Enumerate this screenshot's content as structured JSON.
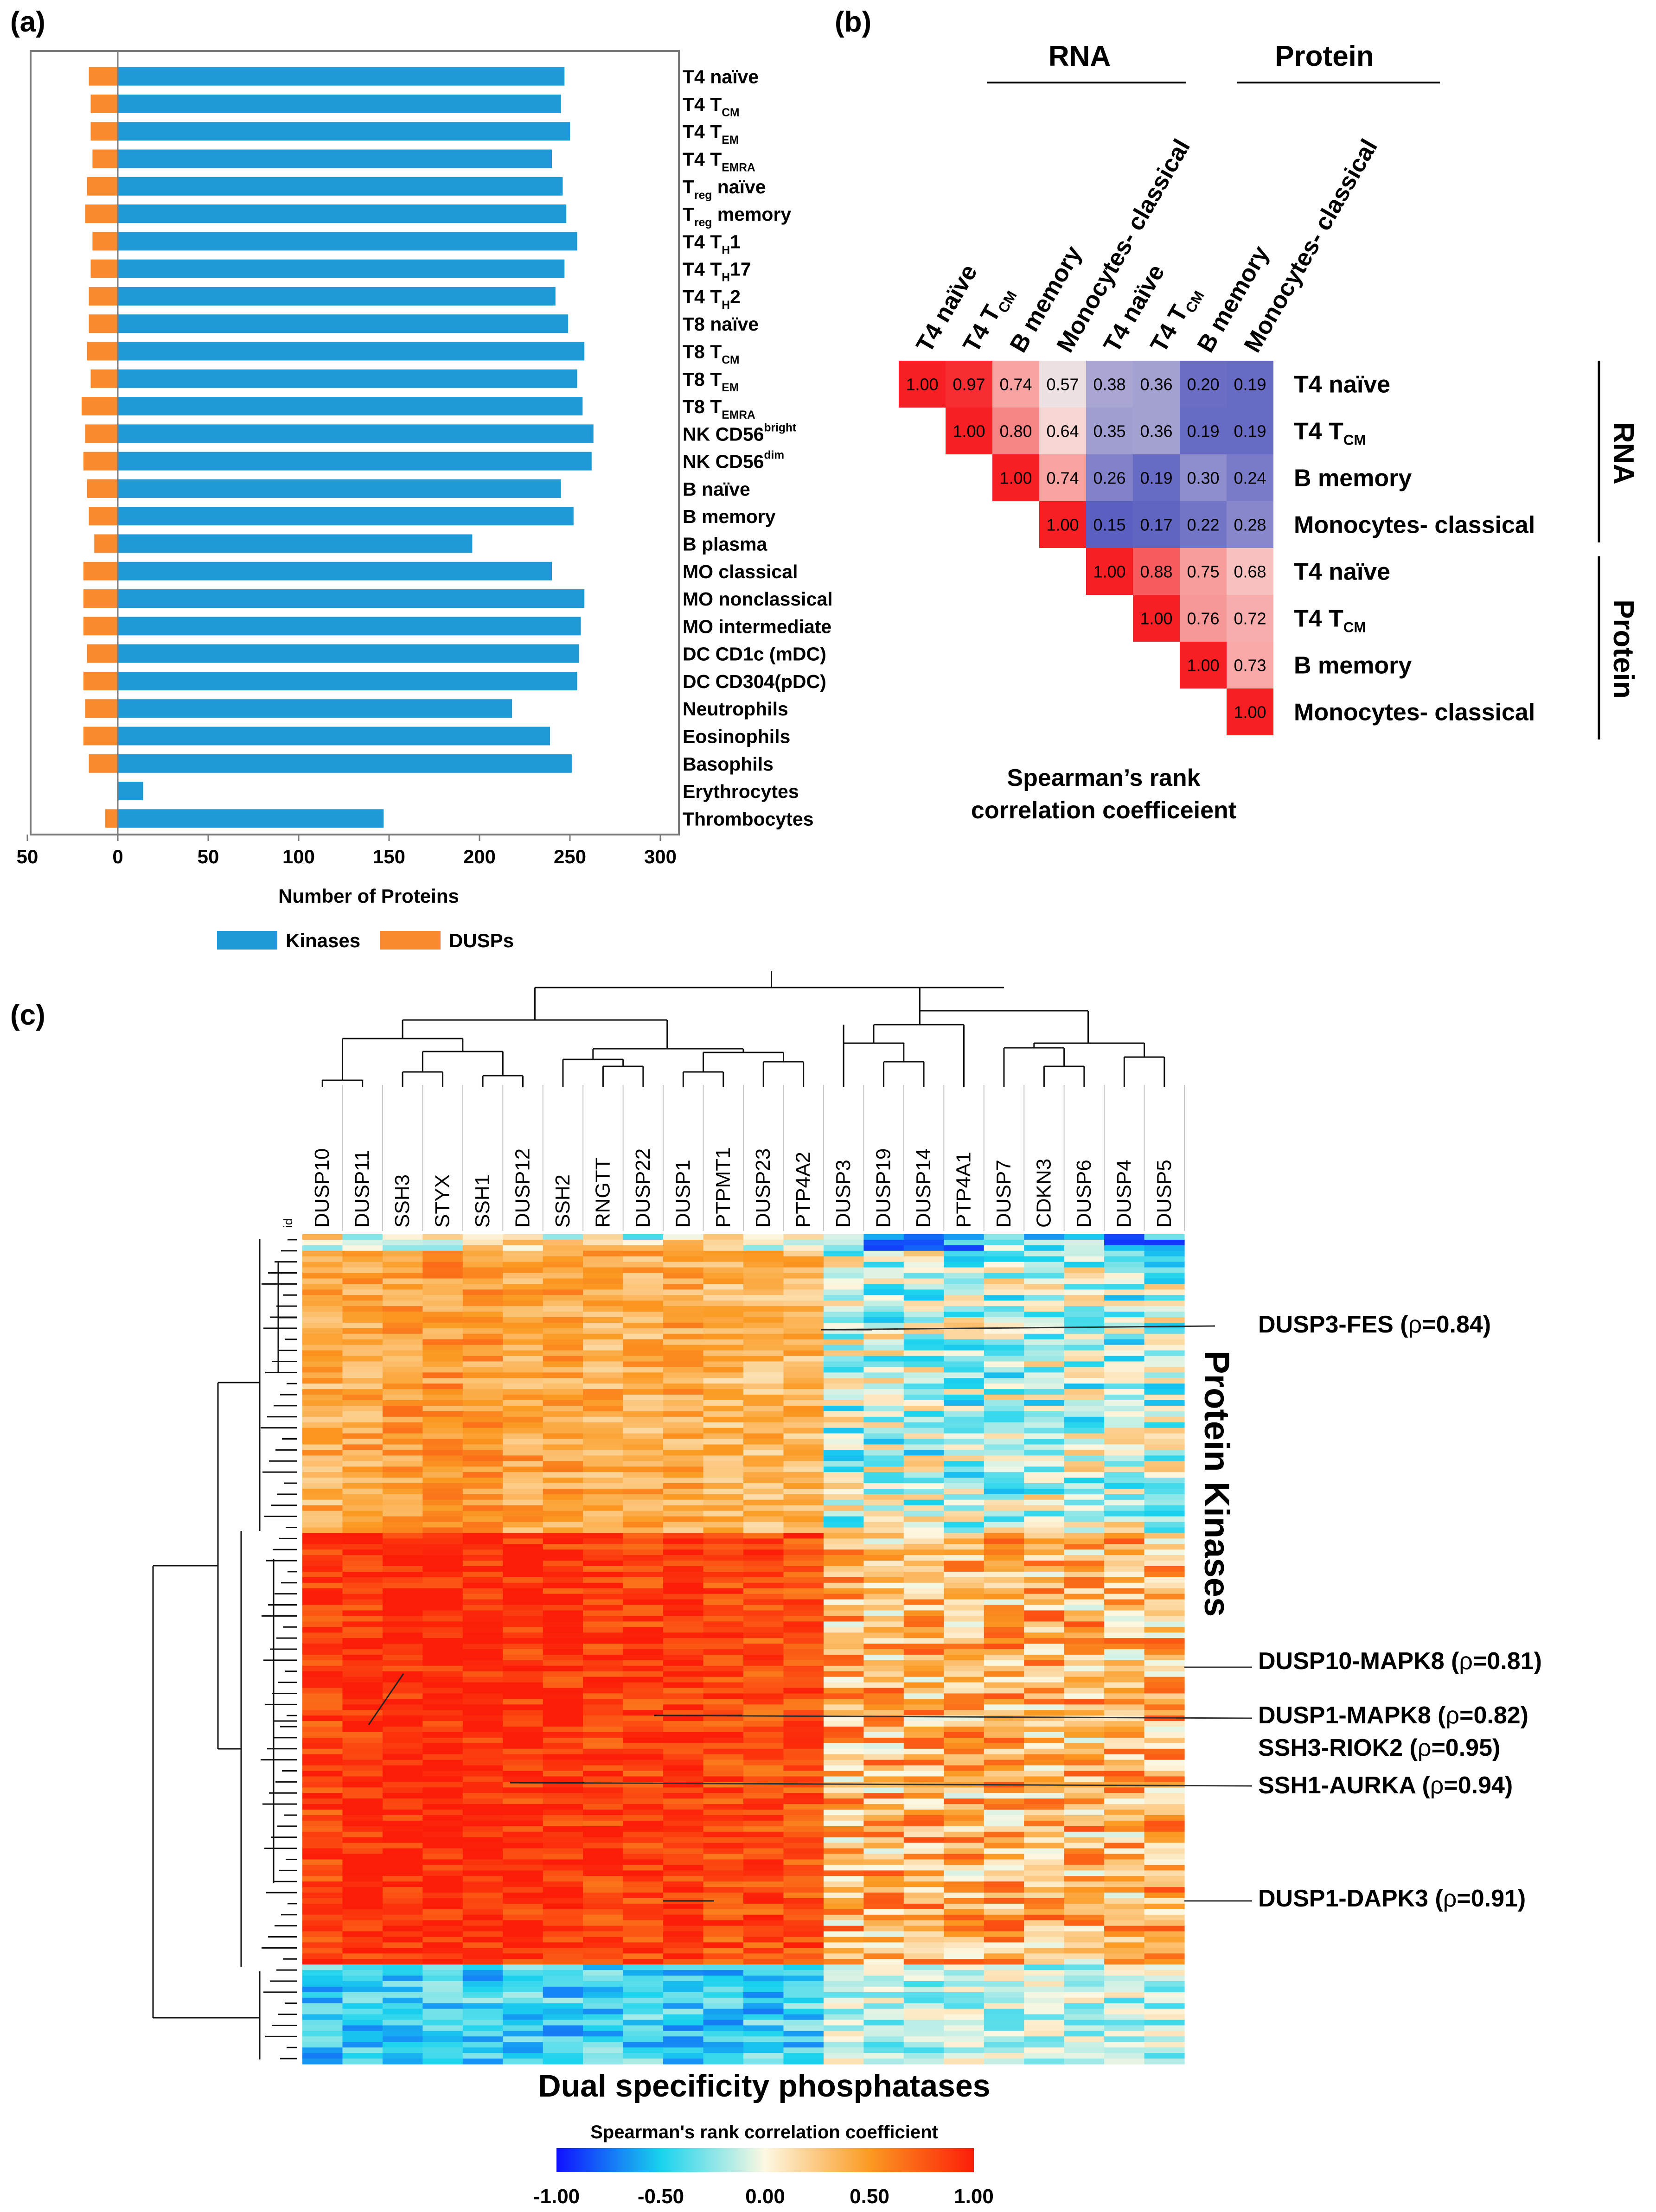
{
  "panels": {
    "a": "(a)",
    "b": "(b)",
    "c": "(c)"
  },
  "chart_data": [
    {
      "type": "bar",
      "panel": "a",
      "orientation": "horizontal",
      "xlabel": "Number of Proteins",
      "xticks": [
        "50",
        "0",
        "50",
        "100",
        "150",
        "200",
        "250",
        "300"
      ],
      "xlim": [
        -50,
        300
      ],
      "categories": [
        {
          "label": "T4 naïve"
        },
        {
          "label": "T4  T",
          "sub": "CM"
        },
        {
          "label": "T4 T",
          "sub": "EM"
        },
        {
          "label": "T4 T",
          "sub": "EMRA"
        },
        {
          "label": "T",
          "sub": "reg",
          "rest": " naïve"
        },
        {
          "label": "T",
          "sub": "reg",
          "rest": " memory"
        },
        {
          "label": "T4 T",
          "sub": "H",
          "rest": "1"
        },
        {
          "label": "T4 T",
          "sub": "H",
          "rest": "17"
        },
        {
          "label": "T4 T",
          "sub": "H",
          "rest": "2"
        },
        {
          "label": "T8 naïve"
        },
        {
          "label": "T8 T",
          "sub": "CM"
        },
        {
          "label": "T8 T",
          "sub": "EM"
        },
        {
          "label": "T8 T",
          "sub": "EMRA"
        },
        {
          "label": "NK CD56",
          "sup": "bright"
        },
        {
          "label": "NK CD56",
          "sup": "dim"
        },
        {
          "label": "B naïve"
        },
        {
          "label": "B memory"
        },
        {
          "label": "B plasma"
        },
        {
          "label": "MO classical"
        },
        {
          "label": "MO nonclassical"
        },
        {
          "label": "MO intermediate"
        },
        {
          "label": "DC CD1c (mDC)"
        },
        {
          "label": "DC CD304(pDC)"
        },
        {
          "label": "Neutrophils"
        },
        {
          "label": "Eosinophils"
        },
        {
          "label": "Basophils"
        },
        {
          "label": "Erythrocytes"
        },
        {
          "label": "Thrombocytes"
        }
      ],
      "series": [
        {
          "name": "Kinases",
          "color": "#1f9ad6",
          "values": [
            247,
            245,
            250,
            240,
            246,
            248,
            254,
            247,
            242,
            249,
            258,
            254,
            257,
            263,
            262,
            245,
            252,
            196,
            240,
            258,
            256,
            255,
            254,
            218,
            239,
            251,
            14,
            147
          ]
        },
        {
          "name": "DUSPs",
          "color": "#f98a2f",
          "values": [
            16,
            15,
            15,
            14,
            17,
            18,
            14,
            15,
            16,
            16,
            17,
            15,
            20,
            18,
            19,
            17,
            16,
            13,
            19,
            19,
            19,
            17,
            19,
            18,
            19,
            16,
            0,
            7
          ]
        }
      ],
      "legend": [
        {
          "name": "Kinases",
          "color": "#1f9ad6"
        },
        {
          "name": "DUSPs",
          "color": "#f98a2f"
        }
      ]
    },
    {
      "type": "heatmap",
      "panel": "b",
      "title_groups": [
        "RNA",
        "Protein"
      ],
      "side_groups": [
        "RNA",
        "Protein"
      ],
      "col_labels": [
        {
          "t": "T4 naïve"
        },
        {
          "t": "T4 T",
          "sub": "CM"
        },
        {
          "t": "B memory"
        },
        {
          "t": "Monocytes- classical"
        },
        {
          "t": "T4 naïve"
        },
        {
          "t": "T4 T",
          "sub": "CM"
        },
        {
          "t": "B memory"
        },
        {
          "t": "Monocytes- classical"
        }
      ],
      "row_labels": [
        {
          "t": "T4 naïve"
        },
        {
          "t": "T4 T",
          "sub": "CM"
        },
        {
          "t": "B memory"
        },
        {
          "t": "Monocytes- classical"
        },
        {
          "t": "T4 naïve"
        },
        {
          "t": "T4 T",
          "sub": "CM"
        },
        {
          "t": "B memory"
        },
        {
          "t": "Monocytes- classical"
        }
      ],
      "values": [
        [
          1.0,
          0.97,
          0.74,
          0.57,
          0.38,
          0.36,
          0.2,
          0.19
        ],
        [
          null,
          1.0,
          0.8,
          0.64,
          0.35,
          0.36,
          0.19,
          0.19
        ],
        [
          null,
          null,
          1.0,
          0.74,
          0.26,
          0.19,
          0.3,
          0.24
        ],
        [
          null,
          null,
          null,
          1.0,
          0.15,
          0.17,
          0.22,
          0.28
        ],
        [
          null,
          null,
          null,
          null,
          1.0,
          0.88,
          0.75,
          0.68
        ],
        [
          null,
          null,
          null,
          null,
          null,
          1.0,
          0.76,
          0.72
        ],
        [
          null,
          null,
          null,
          null,
          null,
          null,
          1.0,
          0.73
        ],
        [
          null,
          null,
          null,
          null,
          null,
          null,
          null,
          1.0
        ]
      ],
      "caption_line1": "Spearman’s rank",
      "caption_line2": "correlation coefficeient"
    },
    {
      "type": "heatmap",
      "panel": "c",
      "columns": [
        "DUSP10",
        "DUSP11",
        "SSH3",
        "STYX",
        "SSH1",
        "DUSP12",
        "SSH2",
        "RNGTT",
        "DUSP22",
        "DUSP1",
        "PTPMT1",
        "DUSP23",
        "PTP4A2",
        "DUSP3",
        "DUSP19",
        "DUSP14",
        "PTP4A1",
        "DUSP7",
        "CDKN3",
        "DUSP6",
        "DUSP4",
        "DUSP5"
      ],
      "id_label": "id",
      "row_axis_label": "Protein Kinases",
      "col_axis_label": "Dual specificity phosphatases",
      "annotations": [
        {
          "label": "DUSP3-FES (",
          "rho": "ρ",
          "value": "=0.84)"
        },
        {
          "label": "DUSP10-MAPK8 (",
          "rho": "ρ",
          "value": "=0.81)"
        },
        {
          "label": "DUSP1-MAPK8 (",
          "rho": "ρ",
          "value": "=0.82)"
        },
        {
          "label": "SSH3-RIOK2 (",
          "rho": "ρ",
          "value": "=0.95)"
        },
        {
          "label": "SSH1-AURKA (",
          "rho": "ρ",
          "value": "=0.94)"
        },
        {
          "label": "DUSP1-DAPK3 (",
          "rho": "ρ",
          "value": "=0.91)"
        }
      ],
      "colorbar": {
        "title": "Spearman's rank correlation coefficient",
        "ticks": [
          "-1.00",
          "-0.50",
          "0.00",
          "0.50",
          "1.00"
        ],
        "colors": [
          "#1010ff",
          "#19d3ee",
          "#fdf8e2",
          "#fb9a22",
          "#fc1d08"
        ]
      }
    }
  ]
}
